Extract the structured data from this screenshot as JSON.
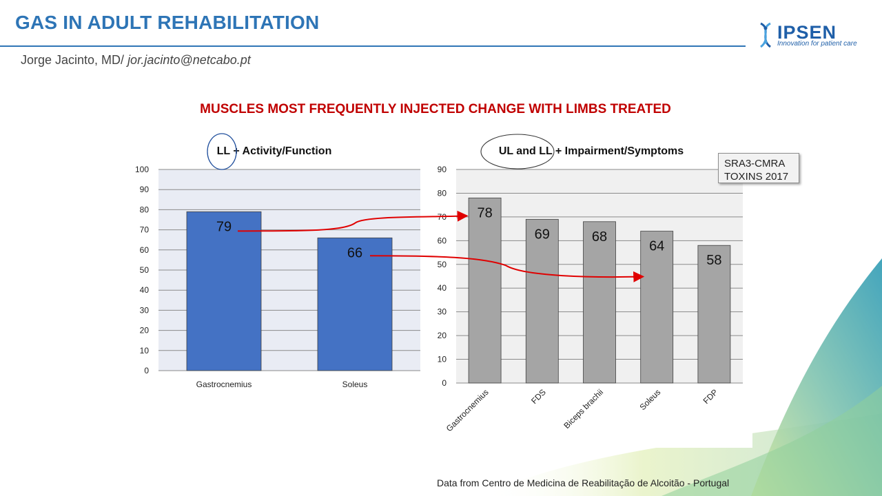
{
  "header": {
    "title": "GAS IN ADULT REHABILITATION",
    "author": "Jorge Jacinto, MD/ ",
    "email": "jor.jacinto@netcabo.pt"
  },
  "logo": {
    "name": "IPSEN",
    "tagline": "Innovation for patient care"
  },
  "subtitle": "MUSCLES MOST FREQUENTLY INJECTED CHANGE WITH LIMBS TREATED",
  "badge": {
    "line1": "SRA3-CMRA",
    "line2": "TOXINS 2017"
  },
  "source": "Data from Centro de Medicina de Reabilitação de Alcoitão - Portugal",
  "colors": {
    "title_blue": "#2e75b6",
    "subtitle_red": "#c00000",
    "bar_blue": "#4472c4",
    "bar_gray": "#a5a5a5",
    "arrow_red": "#e00000"
  },
  "chart_data": [
    {
      "type": "bar",
      "title": "LL + Activity/Function",
      "categories": [
        "Gastrocnemius",
        "Soleus"
      ],
      "values": [
        79,
        66
      ],
      "ylim": [
        0,
        100
      ],
      "yticks": [
        0,
        10,
        20,
        30,
        40,
        50,
        60,
        70,
        80,
        90,
        100
      ],
      "grid": true,
      "bar_color": "#4472c4",
      "plot_bg": "#e9ecf4"
    },
    {
      "type": "bar",
      "title": "UL and LL + Impairment/Symptoms",
      "categories": [
        "Gastrocnemius",
        "FDS",
        "Biceps brachii",
        "Soleus",
        "FDP"
      ],
      "values": [
        78,
        69,
        68,
        64,
        58
      ],
      "ylim": [
        0,
        90
      ],
      "yticks": [
        0,
        10,
        20,
        30,
        40,
        50,
        60,
        70,
        80,
        90
      ],
      "grid": true,
      "bar_color": "#a5a5a5",
      "plot_bg": "#f0f0f0",
      "rotated_labels": true
    }
  ]
}
